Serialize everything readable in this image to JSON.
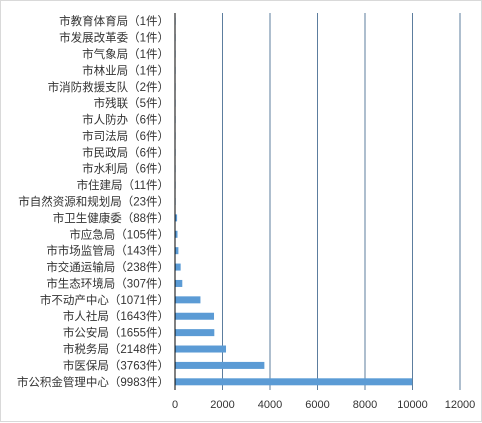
{
  "chart_data": {
    "type": "bar",
    "orientation": "horizontal",
    "categories": [
      "市公积金管理中心（9983件）",
      "市医保局（3763件）",
      "市税务局（2148件）",
      "市公安局（1655件）",
      "市人社局（1643件）",
      "市不动产中心（1071件）",
      "市生态环境局（307件）",
      "市交通运输局（238件）",
      "市市场监管局（143件）",
      "市应急局（105件）",
      "市卫生健康委（88件）",
      "市自然资源和规划局（23件）",
      "市住建局（11件）",
      "市水利局（6件）",
      "市民政局（6件）",
      "市司法局（6件）",
      "市人防办（6件）",
      "市残联（5件）",
      "市消防救援支队（2件）",
      "市林业局（1件）",
      "市气象局（1件）",
      "市发展改革委（1件）",
      "市教育体育局（1件）"
    ],
    "values": [
      9983,
      3763,
      2148,
      1655,
      1643,
      1071,
      307,
      238,
      143,
      105,
      88,
      23,
      11,
      6,
      6,
      6,
      6,
      5,
      2,
      1,
      1,
      1,
      1
    ],
    "xlim": [
      0,
      12000
    ],
    "xticks": [
      "0",
      "2000",
      "4000",
      "6000",
      "8000",
      "10000",
      "12000"
    ],
    "grid": "vertical",
    "legend": "none",
    "colors": {
      "bar": "#5b9bd5",
      "grid": "#4a6f93",
      "axis": "#000000",
      "text": "#333333",
      "border": "#d9d9d9"
    }
  }
}
